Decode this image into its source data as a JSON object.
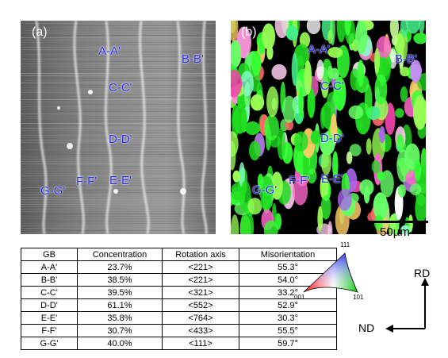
{
  "panels": {
    "a": {
      "label": "(a)"
    },
    "b": {
      "label": "(b)"
    }
  },
  "gb_labels": [
    "A-A'",
    "B-B'",
    "C-C'",
    "D-D'",
    "E-E'",
    "F-F'",
    "G-G'"
  ],
  "scale_bar": {
    "text": "50µm"
  },
  "table": {
    "headers": [
      "GB",
      "Concentration",
      "Rotation axis",
      "Misorientation"
    ],
    "rows": [
      [
        "A-A'",
        "23.7%",
        "<221>",
        "55.3°"
      ],
      [
        "B-B'",
        "38.5%",
        "<221>",
        "54.0°"
      ],
      [
        "C-C'",
        "39.5%",
        "<321>",
        "33.2°"
      ],
      [
        "D-D'",
        "61.1%",
        "<552>",
        "52.9°"
      ],
      [
        "E-E'",
        "35.8%",
        "<764>",
        "30.3°"
      ],
      [
        "F-F'",
        "30.7%",
        "<433>",
        "55.5°"
      ],
      [
        "G-G'",
        "40.0%",
        "<111>",
        "59.7°"
      ]
    ]
  },
  "ipf_legend": {
    "top": "111",
    "left": "001",
    "right": "101"
  },
  "axes": {
    "vertical": "RD",
    "horizontal": "ND"
  }
}
